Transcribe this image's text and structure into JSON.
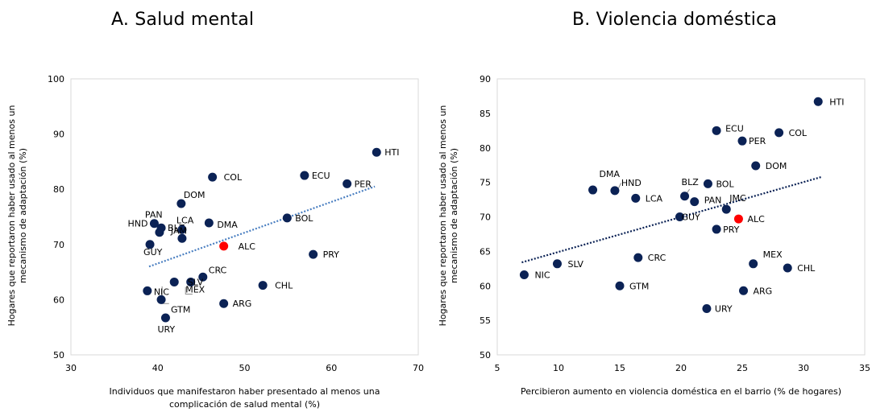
{
  "chart_data": [
    {
      "type": "scatter",
      "title": "A. Salud mental",
      "xlabel": [
        "Individuos que manifestaron haber presentado al menos una",
        "complicación de salud mental (%)"
      ],
      "ylabel": [
        "Hogares que reportaron haber usado al menos un",
        "mecanismo de adaptación (%)"
      ],
      "xlim": [
        30,
        70
      ],
      "ylim": [
        50,
        100
      ],
      "xticks": [
        "30",
        "40",
        "50",
        "60",
        "70"
      ],
      "yticks": [
        "50",
        "60",
        "70",
        "80",
        "90",
        "100"
      ],
      "trendline": {
        "x": [
          39,
          65
        ],
        "y": [
          66,
          80.5
        ],
        "style": "dotted",
        "color": "#4a7fc1"
      },
      "series_color": "#0b2255",
      "highlight_color": "#ff0000",
      "points": [
        {
          "label": "HTI",
          "x": 65.2,
          "y": 86.7
        },
        {
          "label": "ECU",
          "x": 56.9,
          "y": 82.5
        },
        {
          "label": "PER",
          "x": 61.8,
          "y": 81.0
        },
        {
          "label": "COL",
          "x": 46.3,
          "y": 82.2
        },
        {
          "label": "BOL",
          "x": 54.9,
          "y": 74.8
        },
        {
          "label": "DOM",
          "x": 42.7,
          "y": 77.4
        },
        {
          "label": "PAN",
          "x": 40.2,
          "y": 72.2
        },
        {
          "label": "HND",
          "x": 39.6,
          "y": 73.8
        },
        {
          "label": "BLZ",
          "x": 40.4,
          "y": 73.0
        },
        {
          "label": "LCA",
          "x": 42.8,
          "y": 72.7
        },
        {
          "label": "DMA",
          "x": 45.9,
          "y": 73.9
        },
        {
          "label": "JAM",
          "x": 42.8,
          "y": 71.1
        },
        {
          "label": "GUY",
          "x": 39.1,
          "y": 70.0
        },
        {
          "label": "ALC",
          "x": 47.6,
          "y": 69.7,
          "highlight": true
        },
        {
          "label": "PRY",
          "x": 57.9,
          "y": 68.2
        },
        {
          "label": "CRC",
          "x": 45.2,
          "y": 64.1
        },
        {
          "label": "SLV",
          "x": 43.8,
          "y": 63.2
        },
        {
          "label": "MEX",
          "x": 41.9,
          "y": 63.2
        },
        {
          "label": "NIC",
          "x": 38.8,
          "y": 61.6
        },
        {
          "label": "GTM",
          "x": 40.4,
          "y": 60.0
        },
        {
          "label": "CHL",
          "x": 52.1,
          "y": 62.6
        },
        {
          "label": "ARG",
          "x": 47.6,
          "y": 59.3
        },
        {
          "label": "URY",
          "x": 40.9,
          "y": 56.7
        }
      ]
    },
    {
      "type": "scatter",
      "title": "B. Violencia doméstica",
      "xlabel": [
        "Percibieron aumento en violencia doméstica en el barrio (% de hogares)"
      ],
      "ylabel": [
        "Hogares que reportaron haber usado al menos un",
        "mecanismo de adaptación (%)"
      ],
      "xlim": [
        5,
        35
      ],
      "ylim": [
        50,
        90
      ],
      "xticks": [
        "5",
        "10",
        "15",
        "20",
        "25",
        "30",
        "35"
      ],
      "yticks": [
        "50",
        "55",
        "60",
        "65",
        "70",
        "75",
        "80",
        "85",
        "90"
      ],
      "trendline": {
        "x": [
          7,
          31.5
        ],
        "y": [
          63.4,
          75.8
        ],
        "style": "dotted",
        "color": "#0b2255"
      },
      "series_color": "#0b2255",
      "highlight_color": "#ff0000",
      "points": [
        {
          "label": "HTI",
          "x": 31.2,
          "y": 86.7
        },
        {
          "label": "ECU",
          "x": 22.9,
          "y": 82.5
        },
        {
          "label": "COL",
          "x": 28.0,
          "y": 82.2
        },
        {
          "label": "PER",
          "x": 25.0,
          "y": 81.0
        },
        {
          "label": "DOM",
          "x": 26.1,
          "y": 77.4
        },
        {
          "label": "DMA",
          "x": 12.8,
          "y": 73.9
        },
        {
          "label": "HND",
          "x": 14.6,
          "y": 73.8
        },
        {
          "label": "LCA",
          "x": 16.3,
          "y": 72.7
        },
        {
          "label": "BLZ",
          "x": 20.3,
          "y": 73.0
        },
        {
          "label": "BOL",
          "x": 22.2,
          "y": 74.8
        },
        {
          "label": "PAN",
          "x": 21.1,
          "y": 72.2
        },
        {
          "label": "JMC",
          "x": 23.7,
          "y": 71.1
        },
        {
          "label": "GUY",
          "x": 19.9,
          "y": 70.0
        },
        {
          "label": "ALC",
          "x": 24.7,
          "y": 69.7,
          "highlight": true
        },
        {
          "label": "PRY",
          "x": 22.9,
          "y": 68.2
        },
        {
          "label": "CRC",
          "x": 16.5,
          "y": 64.1
        },
        {
          "label": "SLV",
          "x": 9.9,
          "y": 63.2
        },
        {
          "label": "NIC",
          "x": 7.2,
          "y": 61.6
        },
        {
          "label": "MEX",
          "x": 25.9,
          "y": 63.2
        },
        {
          "label": "CHL",
          "x": 28.7,
          "y": 62.6
        },
        {
          "label": "GTM",
          "x": 15.0,
          "y": 60.0
        },
        {
          "label": "ARG",
          "x": 25.1,
          "y": 59.3
        },
        {
          "label": "URY",
          "x": 22.1,
          "y": 56.7
        }
      ]
    }
  ]
}
